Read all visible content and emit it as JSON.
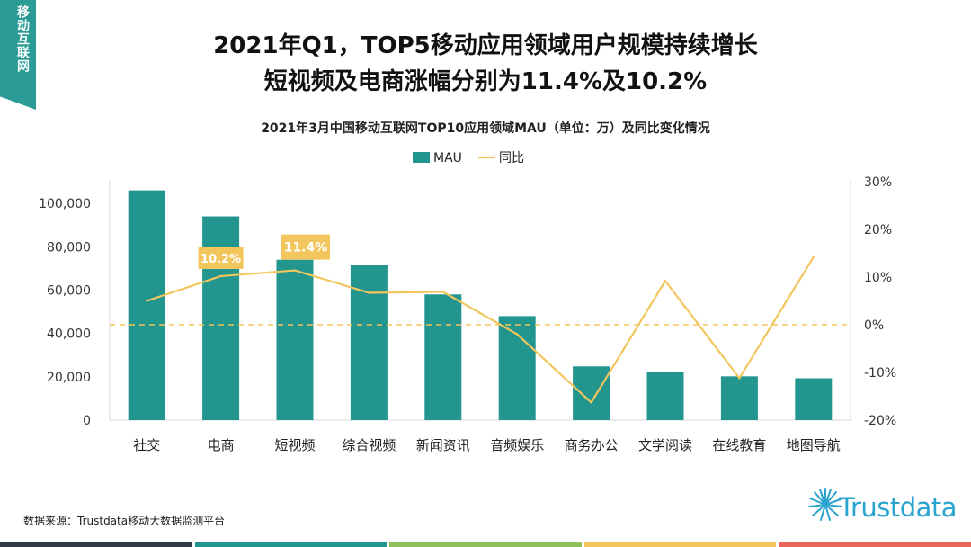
{
  "badge": {
    "text": "移动互联网"
  },
  "header": {
    "title_line1": "2021年Q1，TOP5移动应用领域用户规模持续增长",
    "title_line2": "短视频及电商涨幅分别为11.4%及10.2%"
  },
  "chart_data": {
    "type": "bar+line",
    "title": "2021年3月中国移动互联网TOP10应用领域MAU（单位：万）及同比变化情况",
    "categories": [
      "社交",
      "电商",
      "短视频",
      "综合视频",
      "新闻资讯",
      "音频娱乐",
      "商务办公",
      "文学阅读",
      "在线教育",
      "地图导航"
    ],
    "series": [
      {
        "name": "MAU",
        "type": "bar",
        "axis": "left",
        "color": "#23958f",
        "values": [
          106000,
          94000,
          74000,
          71500,
          58000,
          48000,
          24800,
          22300,
          20200,
          19300
        ]
      },
      {
        "name": "同比",
        "type": "line",
        "axis": "right",
        "color": "#f2c65c",
        "values": [
          5.0,
          10.2,
          11.4,
          6.7,
          6.9,
          -2.0,
          -16.3,
          9.2,
          -11.2,
          14.2
        ]
      }
    ],
    "left_axis": {
      "min": 0,
      "max": 110000,
      "ticks": [
        0,
        20000,
        40000,
        60000,
        80000,
        100000
      ],
      "tick_labels": [
        "0",
        "20,000",
        "40,000",
        "60,000",
        "80,000",
        "100,000"
      ]
    },
    "right_axis": {
      "min": -20,
      "max": 30,
      "ticks": [
        -20,
        -10,
        0,
        10,
        20,
        30
      ],
      "tick_labels": [
        "-20%",
        "-10%",
        "0%",
        "10%",
        "20%",
        "30%"
      ]
    },
    "reference_line": {
      "value": 0,
      "style": "dashed",
      "color": "#f2c65c"
    },
    "annotations": [
      {
        "category": "电商",
        "text": "10.2%"
      },
      {
        "category": "短视频",
        "text": "11.4%"
      }
    ],
    "legend": {
      "position": "top",
      "entries": [
        "MAU",
        "同比"
      ]
    }
  },
  "footer": {
    "source": "数据来源：Trustdata移动大数据监测平台",
    "logo_text": "Trustdata",
    "bottom_bar_colors": [
      "#2f3a45",
      "#23958f",
      "#8fc05a",
      "#f2c65c",
      "#e8655a"
    ]
  }
}
